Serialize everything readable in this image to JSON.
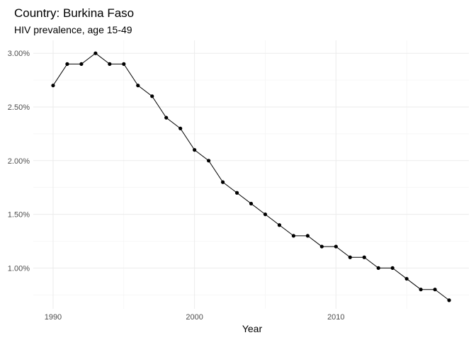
{
  "chart_data": {
    "type": "line",
    "title": "Country: Burkina Faso",
    "subtitle": "HIV prevalence, age 15-49",
    "xlabel": "Year",
    "ylabel": "",
    "xlim": [
      1988.6,
      2019.4
    ],
    "ylim": [
      0.0062,
      0.0312
    ],
    "x_ticks": [
      1990,
      2000,
      2010
    ],
    "x_tick_labels": [
      "1990",
      "2000",
      "2010"
    ],
    "x_minor_ticks": [
      1995,
      2005,
      2015
    ],
    "y_ticks": [
      0.01,
      0.015,
      0.02,
      0.025,
      0.03
    ],
    "y_tick_labels": [
      "1.00%",
      "1.50%",
      "2.00%",
      "2.50%",
      "3.00%"
    ],
    "y_minor_ticks": [
      0.0075,
      0.0125,
      0.0175,
      0.0225,
      0.0275
    ],
    "grid": true,
    "legend": "none",
    "series": [
      {
        "x": [
          1990,
          1991,
          1992,
          1993,
          1994,
          1995,
          1996,
          1997,
          1998,
          1999,
          2000,
          2001,
          2002,
          2003,
          2004,
          2005,
          2006,
          2007,
          2008,
          2009,
          2010,
          2011,
          2012,
          2013,
          2014,
          2015,
          2016,
          2017,
          2018
        ],
        "values": [
          0.027,
          0.029,
          0.029,
          0.03,
          0.029,
          0.029,
          0.027,
          0.026,
          0.024,
          0.023,
          0.021,
          0.02,
          0.018,
          0.017,
          0.016,
          0.015,
          0.014,
          0.013,
          0.013,
          0.012,
          0.012,
          0.011,
          0.011,
          0.01,
          0.01,
          0.009,
          0.008,
          0.008,
          0.007
        ]
      }
    ]
  }
}
